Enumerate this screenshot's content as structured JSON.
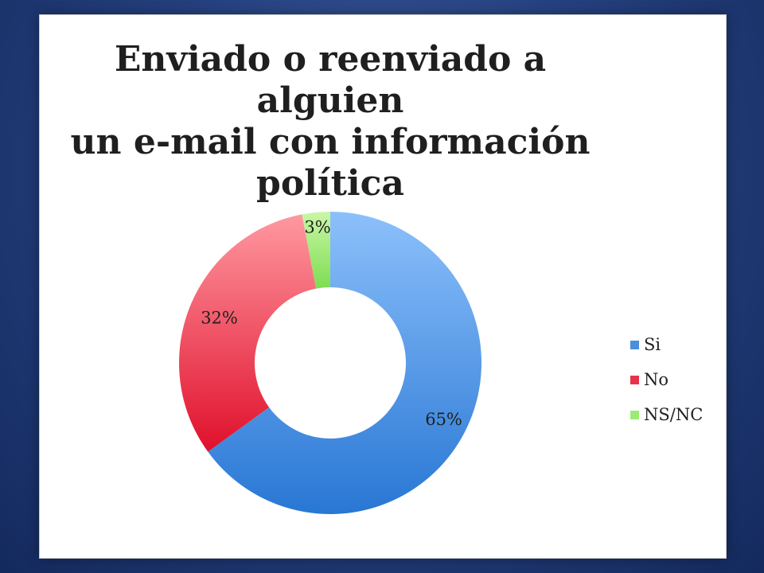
{
  "chart_data": {
    "type": "pie",
    "donut": true,
    "title_lines": [
      "Enviado o reenviado a alguien",
      "un e-mail con información",
      "política"
    ],
    "categories": [
      "Si",
      "No",
      "NS/NC"
    ],
    "values": [
      65,
      32,
      3
    ],
    "data_labels": [
      "65%",
      "32%",
      "3%"
    ],
    "colors": [
      "#4a8fdc",
      "#e8324a",
      "#9bec76"
    ],
    "legend_position": "right"
  }
}
